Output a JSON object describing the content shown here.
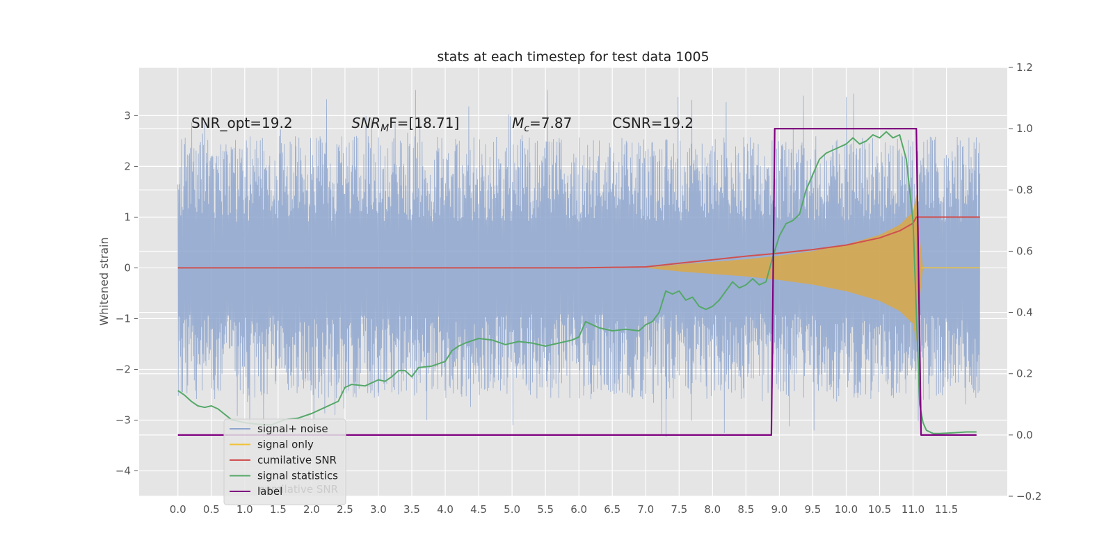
{
  "chart_data": {
    "type": "line",
    "title": "stats at each timestep for test data 1005",
    "ylabel": "Whitened strain",
    "xlabel": "",
    "xlim": [
      -0.58,
      12.41
    ],
    "ylim": [
      -4.5,
      3.95
    ],
    "y2lim": [
      -0.2,
      1.2
    ],
    "grid": true,
    "x_ticks": [
      "0.0",
      "0.5",
      "1.0",
      "1.5",
      "2.0",
      "2.5",
      "3.0",
      "3.5",
      "4.0",
      "4.5",
      "5.0",
      "5.5",
      "6.0",
      "6.5",
      "7.0",
      "7.5",
      "8.0",
      "8.5",
      "9.0",
      "9.5",
      "10.0",
      "10.5",
      "11.0",
      "11.5"
    ],
    "y_ticks": [
      "3",
      "2",
      "1",
      "0",
      "−1",
      "−2",
      "−3",
      "−4"
    ],
    "y2_ticks": [
      "1.2",
      "1.0",
      "0.8",
      "0.6",
      "0.4",
      "0.2",
      "0.0",
      "−0.2"
    ],
    "annotations": [
      {
        "text": "SNR_opt=19.2",
        "x": 0.2
      },
      {
        "text": "SNR",
        "sub": "M",
        "suffix": "F=[18.71]",
        "x": 2.6
      },
      {
        "text": "M",
        "sub": "c",
        "suffix": "=7.87",
        "x": 5.0
      },
      {
        "text": "CSNR=19.2",
        "x": 6.5
      }
    ],
    "legend": {
      "placement": "lower-left",
      "entries": [
        {
          "label": "signal+ noise",
          "color": "#8EA6CF"
        },
        {
          "label": "signal only",
          "color": "#F1C232"
        },
        {
          "label": "cumilative SNR",
          "color": "#D0504F"
        },
        {
          "label": "signal statistics",
          "color": "#55A868"
        },
        {
          "label": "label",
          "color": "#800080"
        }
      ],
      "ghost_text": "cumilative SNR"
    },
    "series": [
      {
        "name": "signal+ noise",
        "axis": "left",
        "color": "#8EA6CF",
        "summary": {
          "x_range": [
            0.0,
            12.0
          ],
          "min": -4.1,
          "max": 3.6,
          "typical_amplitude": 2.6
        }
      },
      {
        "name": "signal only",
        "axis": "left",
        "color": "#F1C232",
        "envelope": {
          "x": [
            7.0,
            7.5,
            8.0,
            8.5,
            9.0,
            9.5,
            10.0,
            10.5,
            10.8,
            11.0,
            11.05,
            11.1,
            11.15,
            12.0
          ],
          "amp": [
            0.0,
            0.07,
            0.12,
            0.17,
            0.24,
            0.33,
            0.46,
            0.65,
            0.85,
            1.1,
            1.45,
            0.6,
            0.0,
            0.0
          ]
        }
      },
      {
        "name": "cumilative SNR",
        "axis": "left",
        "x": [
          0.0,
          6.0,
          7.0,
          7.5,
          8.0,
          8.5,
          9.0,
          9.5,
          10.0,
          10.5,
          10.8,
          11.0,
          11.05,
          11.1,
          12.0
        ],
        "y": [
          0.0,
          0.0,
          0.02,
          0.09,
          0.16,
          0.23,
          0.29,
          0.36,
          0.45,
          0.59,
          0.73,
          0.88,
          1.0,
          1.0,
          1.0
        ]
      },
      {
        "name": "signal statistics",
        "axis": "right",
        "x": [
          0.0,
          0.1,
          0.2,
          0.3,
          0.4,
          0.5,
          0.6,
          0.8,
          1.0,
          1.2,
          1.4,
          1.6,
          1.8,
          2.0,
          2.2,
          2.4,
          2.5,
          2.6,
          2.8,
          3.0,
          3.1,
          3.2,
          3.3,
          3.4,
          3.5,
          3.6,
          3.8,
          4.0,
          4.1,
          4.2,
          4.3,
          4.5,
          4.7,
          4.9,
          5.1,
          5.3,
          5.5,
          5.7,
          5.9,
          6.0,
          6.1,
          6.2,
          6.3,
          6.5,
          6.7,
          6.9,
          7.0,
          7.1,
          7.2,
          7.3,
          7.4,
          7.5,
          7.6,
          7.7,
          7.8,
          7.9,
          8.0,
          8.1,
          8.3,
          8.4,
          8.5,
          8.6,
          8.7,
          8.8,
          8.9,
          9.0,
          9.1,
          9.2,
          9.3,
          9.4,
          9.5,
          9.6,
          9.7,
          9.8,
          9.9,
          10.0,
          10.1,
          10.2,
          10.3,
          10.4,
          10.5,
          10.6,
          10.7,
          10.8,
          10.9,
          11.0,
          11.05,
          11.1,
          11.15,
          11.2,
          11.3,
          11.4,
          11.6,
          11.8,
          11.95
        ],
        "y": [
          0.145,
          0.13,
          0.11,
          0.095,
          0.09,
          0.095,
          0.085,
          0.05,
          0.04,
          0.035,
          0.033,
          0.05,
          0.055,
          0.07,
          0.09,
          0.11,
          0.155,
          0.165,
          0.16,
          0.18,
          0.175,
          0.19,
          0.21,
          0.21,
          0.19,
          0.22,
          0.225,
          0.24,
          0.275,
          0.29,
          0.3,
          0.315,
          0.31,
          0.295,
          0.305,
          0.3,
          0.29,
          0.3,
          0.31,
          0.32,
          0.37,
          0.36,
          0.35,
          0.34,
          0.345,
          0.34,
          0.36,
          0.37,
          0.4,
          0.47,
          0.46,
          0.47,
          0.44,
          0.45,
          0.42,
          0.41,
          0.42,
          0.44,
          0.5,
          0.48,
          0.49,
          0.51,
          0.49,
          0.5,
          0.58,
          0.65,
          0.69,
          0.7,
          0.72,
          0.8,
          0.85,
          0.9,
          0.92,
          0.93,
          0.94,
          0.95,
          0.97,
          0.95,
          0.96,
          0.98,
          0.97,
          0.99,
          0.97,
          0.98,
          0.9,
          0.7,
          0.4,
          0.1,
          0.04,
          0.015,
          0.005,
          0.005,
          0.007,
          0.01,
          0.01
        ]
      },
      {
        "name": "label",
        "axis": "right",
        "x": [
          0.0,
          8.88,
          8.93,
          11.05,
          11.12,
          11.95
        ],
        "y": [
          0.0,
          0.0,
          1.0,
          1.0,
          0.0,
          0.0
        ]
      }
    ]
  }
}
